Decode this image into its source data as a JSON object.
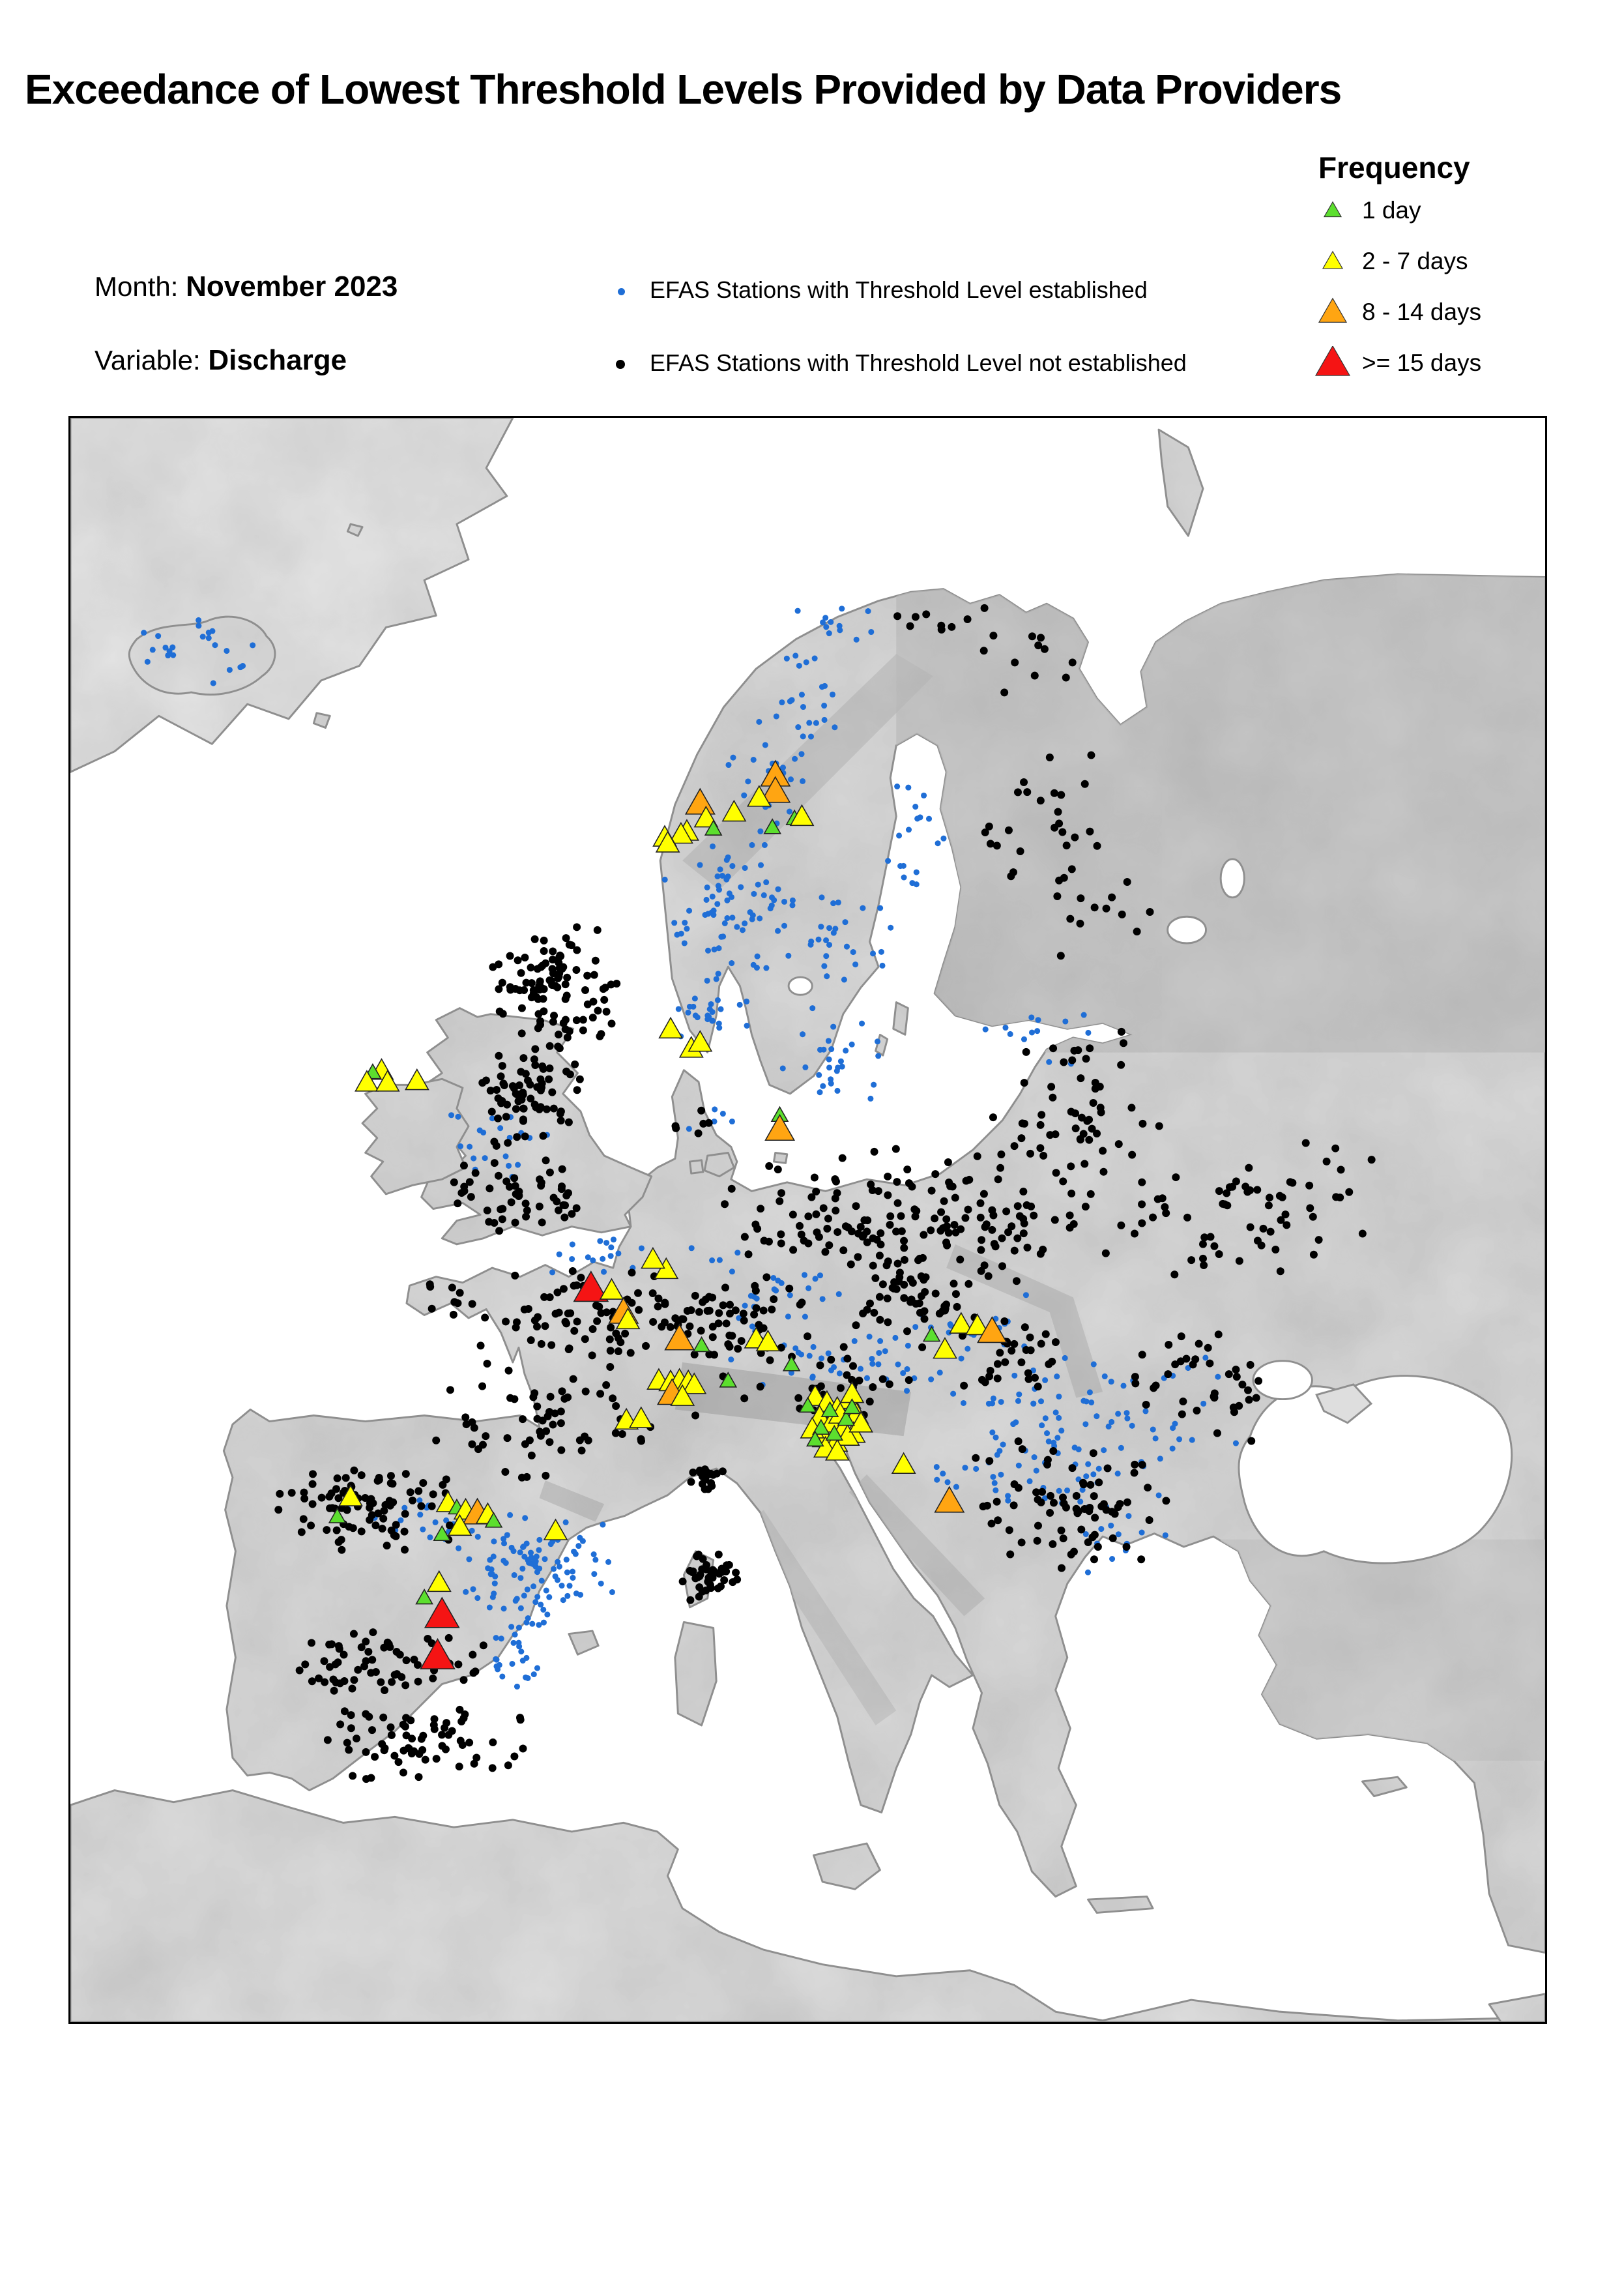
{
  "title": "Exceedance of Lowest Threshold Levels Provided by Data Providers",
  "meta": {
    "month_label": "Month:",
    "month_value": "November 2023",
    "variable_label": "Variable:",
    "variable_value": "Discharge"
  },
  "station_legend": {
    "established": {
      "label": "EFAS Stations with Threshold Level established",
      "color": "#1f6ed6"
    },
    "not_established": {
      "label": "EFAS Stations with Threshold Level not established",
      "color": "#000000"
    }
  },
  "frequency_legend": {
    "title": "Frequency",
    "items": [
      {
        "id": "1-day",
        "label": "1 day",
        "color": "#5cdf2e",
        "size": 26
      },
      {
        "id": "2-7",
        "label": "2 - 7 days",
        "color": "#ffff00",
        "size": 30
      },
      {
        "id": "8-14",
        "label": "8 - 14 days",
        "color": "#ffa512",
        "size": 42
      },
      {
        "id": "ge-15",
        "label": ">= 15 days",
        "color": "#f51414",
        "size": 52
      }
    ]
  },
  "map": {
    "colors": {
      "blue": "#1f6ed6",
      "black": "#000000",
      "green": "#5cdf2e",
      "yellow": "#ffff00",
      "orange": "#ffa512",
      "red": "#f51414"
    },
    "dot_radius": {
      "blue": 2.0,
      "black": 2.65
    },
    "triangle_width": {
      "green": 11,
      "yellow": 15.5,
      "orange": 19.5,
      "red": 23
    },
    "clusters": [
      [
        "blue",
        90,
        160,
        42,
        26,
        22
      ],
      [
        "blue",
        526,
        140,
        48,
        16,
        12
      ],
      [
        "blue",
        498,
        188,
        30,
        42,
        22
      ],
      [
        "blue",
        474,
        250,
        32,
        48,
        30
      ],
      [
        "blue",
        447,
        336,
        46,
        52,
        65
      ],
      [
        "blue",
        436,
        400,
        30,
        26,
        25
      ],
      [
        "blue",
        513,
        350,
        52,
        38,
        32
      ],
      [
        "blue",
        520,
        430,
        38,
        42,
        28
      ],
      [
        "blue",
        578,
        278,
        22,
        55,
        10
      ],
      [
        "blue",
        567,
        300,
        18,
        30,
        8
      ],
      [
        "blue",
        289,
        492,
        38,
        26,
        20
      ],
      [
        "blue",
        659,
        420,
        46,
        22,
        13
      ],
      [
        "blue",
        360,
        570,
        38,
        18,
        16
      ],
      [
        "blue",
        474,
        596,
        65,
        38,
        28
      ],
      [
        "blue",
        527,
        641,
        85,
        22,
        38
      ],
      [
        "blue",
        604,
        618,
        55,
        28,
        24
      ],
      [
        "blue",
        659,
        666,
        65,
        42,
        42
      ],
      [
        "blue",
        641,
        710,
        75,
        38,
        38
      ],
      [
        "blue",
        738,
        675,
        55,
        46,
        28
      ],
      [
        "blue",
        700,
        757,
        55,
        36,
        18
      ],
      [
        "blue",
        315,
        776,
        55,
        38,
        95
      ],
      [
        "blue",
        303,
        828,
        22,
        40,
        32
      ],
      [
        "blue",
        240,
        752,
        55,
        22,
        22
      ],
      [
        "blue",
        433,
        478,
        20,
        14,
        5
      ],
      [
        "black",
        328,
        386,
        46,
        46,
        105
      ],
      [
        "black",
        312,
        458,
        36,
        38,
        60
      ],
      [
        "black",
        303,
        528,
        50,
        26,
        52
      ],
      [
        "black",
        300,
        465,
        26,
        20,
        13
      ],
      [
        "black",
        341,
        608,
        85,
        42,
        75
      ],
      [
        "black",
        330,
        678,
        95,
        48,
        65
      ],
      [
        "black",
        253,
        596,
        36,
        16,
        8
      ],
      [
        "black",
        570,
        543,
        140,
        50,
        165
      ],
      [
        "black",
        681,
        490,
        75,
        38,
        40
      ],
      [
        "black",
        778,
        548,
        85,
        50,
        50
      ],
      [
        "black",
        838,
        520,
        70,
        45,
        16
      ],
      [
        "black",
        452,
        610,
        55,
        42,
        55
      ],
      [
        "black",
        579,
        600,
        65,
        32,
        50
      ],
      [
        "black",
        513,
        654,
        75,
        28,
        32
      ],
      [
        "black",
        641,
        635,
        55,
        28,
        28
      ],
      [
        "black",
        667,
        738,
        85,
        50,
        75
      ],
      [
        "black",
        769,
        653,
        65,
        46,
        38
      ],
      [
        "black",
        667,
        280,
        55,
        65,
        28
      ],
      [
        "black",
        650,
        162,
        55,
        28,
        10
      ],
      [
        "black",
        703,
        336,
        55,
        38,
        12
      ],
      [
        "black",
        681,
        442,
        55,
        28,
        18
      ],
      [
        "black",
        200,
        737,
        65,
        32,
        85
      ],
      [
        "black",
        227,
        845,
        65,
        24,
        50
      ],
      [
        "black",
        238,
        898,
        75,
        28,
        70
      ],
      [
        "black",
        174,
        845,
        22,
        48,
        16
      ],
      [
        "black",
        434,
        785,
        24,
        18,
        42
      ],
      [
        "black",
        432,
        717,
        14,
        11,
        20
      ],
      [
        "black",
        430,
        477,
        22,
        16,
        6
      ],
      [
        "black",
        593,
        140,
        50,
        18,
        10
      ]
    ],
    "triangles": [
      [
        "orange",
        478,
        243
      ],
      [
        "orange",
        478,
        254
      ],
      [
        "yellow",
        467,
        258
      ],
      [
        "yellow",
        450,
        268
      ],
      [
        "orange",
        427,
        262
      ],
      [
        "yellow",
        431,
        272
      ],
      [
        "yellow",
        418,
        281
      ],
      [
        "yellow",
        414,
        283
      ],
      [
        "yellow",
        403,
        285
      ],
      [
        "yellow",
        405,
        289
      ],
      [
        "green",
        436,
        279
      ],
      [
        "green",
        476,
        278
      ],
      [
        "green",
        491,
        272
      ],
      [
        "yellow",
        496,
        271
      ],
      [
        "yellow",
        407,
        415
      ],
      [
        "yellow",
        421,
        428
      ],
      [
        "yellow",
        427,
        424
      ],
      [
        "green",
        481,
        473
      ],
      [
        "orange",
        481,
        483
      ],
      [
        "yellow",
        211,
        443
      ],
      [
        "green",
        205,
        444
      ],
      [
        "yellow",
        201,
        451
      ],
      [
        "yellow",
        215,
        451
      ],
      [
        "yellow",
        235,
        450
      ],
      [
        "red",
        353,
        591
      ],
      [
        "yellow",
        367,
        592
      ],
      [
        "orange",
        375,
        607
      ],
      [
        "yellow",
        378,
        612
      ],
      [
        "yellow",
        404,
        578
      ],
      [
        "yellow",
        395,
        571
      ],
      [
        "orange",
        413,
        625
      ],
      [
        "green",
        428,
        629
      ],
      [
        "yellow",
        465,
        625
      ],
      [
        "yellow",
        473,
        627
      ],
      [
        "green",
        489,
        642
      ],
      [
        "green",
        446,
        653
      ],
      [
        "yellow",
        399,
        653
      ],
      [
        "yellow",
        407,
        654
      ],
      [
        "yellow",
        413,
        653
      ],
      [
        "yellow",
        419,
        654
      ],
      [
        "yellow",
        423,
        656
      ],
      [
        "orange",
        408,
        662
      ],
      [
        "yellow",
        415,
        664
      ],
      [
        "yellow",
        377,
        680
      ],
      [
        "yellow",
        387,
        679
      ],
      [
        "green",
        584,
        622
      ],
      [
        "yellow",
        604,
        615
      ],
      [
        "yellow",
        615,
        616
      ],
      [
        "orange",
        625,
        620
      ],
      [
        "yellow",
        593,
        632
      ],
      [
        "yellow",
        505,
        664
      ],
      [
        "yellow",
        513,
        668
      ],
      [
        "yellow",
        520,
        672
      ],
      [
        "yellow",
        528,
        666
      ],
      [
        "yellow",
        533,
        676
      ],
      [
        "yellow",
        508,
        678
      ],
      [
        "yellow",
        516,
        682
      ],
      [
        "yellow",
        524,
        686
      ],
      [
        "yellow",
        531,
        689
      ],
      [
        "yellow",
        511,
        692
      ],
      [
        "yellow",
        519,
        695
      ],
      [
        "yellow",
        527,
        691
      ],
      [
        "yellow",
        503,
        686
      ],
      [
        "yellow",
        536,
        682
      ],
      [
        "yellow",
        522,
        676
      ],
      [
        "yellow",
        512,
        699
      ],
      [
        "yellow",
        520,
        701
      ],
      [
        "yellow",
        530,
        662
      ],
      [
        "green",
        500,
        670
      ],
      [
        "green",
        515,
        673
      ],
      [
        "green",
        526,
        679
      ],
      [
        "green",
        509,
        685
      ],
      [
        "green",
        518,
        689
      ],
      [
        "green",
        505,
        693
      ],
      [
        "green",
        530,
        671
      ],
      [
        "yellow",
        565,
        710
      ],
      [
        "orange",
        596,
        735
      ],
      [
        "yellow",
        190,
        732
      ],
      [
        "green",
        181,
        745
      ],
      [
        "yellow",
        256,
        736
      ],
      [
        "green",
        262,
        739
      ],
      [
        "yellow",
        268,
        741
      ],
      [
        "orange",
        276,
        743
      ],
      [
        "yellow",
        283,
        744
      ],
      [
        "green",
        287,
        748
      ],
      [
        "yellow",
        264,
        752
      ],
      [
        "green",
        252,
        757
      ],
      [
        "yellow",
        329,
        755
      ],
      [
        "yellow",
        250,
        790
      ],
      [
        "green",
        240,
        800
      ],
      [
        "red",
        252,
        812
      ],
      [
        "red",
        249,
        840
      ]
    ]
  }
}
